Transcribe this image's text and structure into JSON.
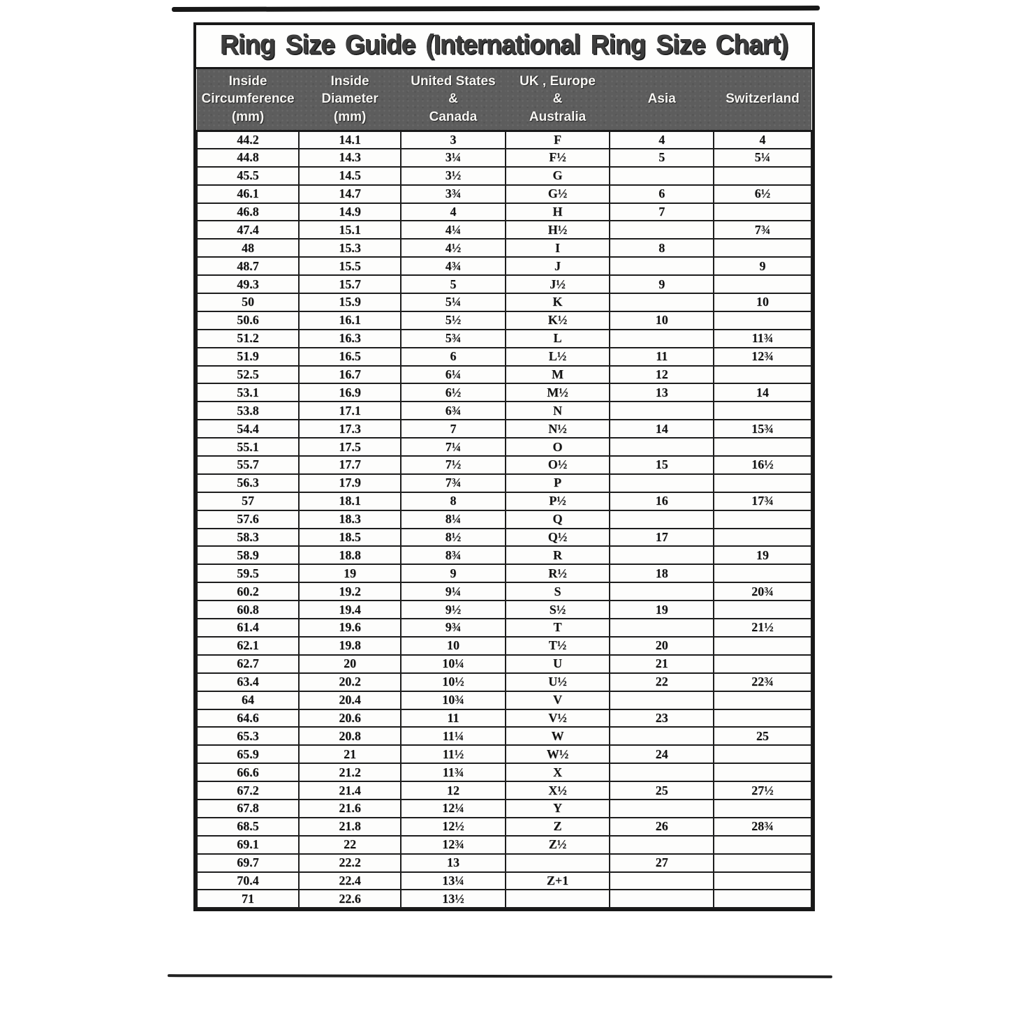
{
  "title": "Ring Size Guide (International Ring Size Chart)",
  "chart_data": {
    "type": "table",
    "title": "Ring Size Guide (International Ring Size Chart)",
    "columns": [
      "Inside Circumference (mm)",
      "Inside Diameter (mm)",
      "United States & Canada",
      "UK , Europe & Australia",
      "Asia",
      "Switzerland"
    ],
    "header_display": [
      "Inside\nCircumference\n(mm)",
      "Inside\nDiameter\n(mm)",
      "United States\n&\nCanada",
      "UK , Europe\n&\nAustralia",
      "Asia",
      "Switzerland"
    ],
    "rows": [
      [
        "44.2",
        "14.1",
        "3",
        "F",
        "4",
        "4"
      ],
      [
        "44.8",
        "14.3",
        "3¼",
        "F½",
        "5",
        "5¼"
      ],
      [
        "45.5",
        "14.5",
        "3½",
        "G",
        "",
        ""
      ],
      [
        "46.1",
        "14.7",
        "3¾",
        "G½",
        "6",
        "6½"
      ],
      [
        "46.8",
        "14.9",
        "4",
        "H",
        "7",
        ""
      ],
      [
        "47.4",
        "15.1",
        "4¼",
        "H½",
        "",
        "7¾"
      ],
      [
        "48",
        "15.3",
        "4½",
        "I",
        "8",
        ""
      ],
      [
        "48.7",
        "15.5",
        "4¾",
        "J",
        "",
        "9"
      ],
      [
        "49.3",
        "15.7",
        "5",
        "J½",
        "9",
        ""
      ],
      [
        "50",
        "15.9",
        "5¼",
        "K",
        "",
        "10"
      ],
      [
        "50.6",
        "16.1",
        "5½",
        "K½",
        "10",
        ""
      ],
      [
        "51.2",
        "16.3",
        "5¾",
        "L",
        "",
        "11¾"
      ],
      [
        "51.9",
        "16.5",
        "6",
        "L½",
        "11",
        "12¾"
      ],
      [
        "52.5",
        "16.7",
        "6¼",
        "M",
        "12",
        ""
      ],
      [
        "53.1",
        "16.9",
        "6½",
        "M½",
        "13",
        "14"
      ],
      [
        "53.8",
        "17.1",
        "6¾",
        "N",
        "",
        ""
      ],
      [
        "54.4",
        "17.3",
        "7",
        "N½",
        "14",
        "15¾"
      ],
      [
        "55.1",
        "17.5",
        "7¼",
        "O",
        "",
        ""
      ],
      [
        "55.7",
        "17.7",
        "7½",
        "O½",
        "15",
        "16½"
      ],
      [
        "56.3",
        "17.9",
        "7¾",
        "P",
        "",
        ""
      ],
      [
        "57",
        "18.1",
        "8",
        "P½",
        "16",
        "17¾"
      ],
      [
        "57.6",
        "18.3",
        "8¼",
        "Q",
        "",
        ""
      ],
      [
        "58.3",
        "18.5",
        "8½",
        "Q½",
        "17",
        ""
      ],
      [
        "58.9",
        "18.8",
        "8¾",
        "R",
        "",
        "19"
      ],
      [
        "59.5",
        "19",
        "9",
        "R½",
        "18",
        ""
      ],
      [
        "60.2",
        "19.2",
        "9¼",
        "S",
        "",
        "20¾"
      ],
      [
        "60.8",
        "19.4",
        "9½",
        "S½",
        "19",
        ""
      ],
      [
        "61.4",
        "19.6",
        "9¾",
        "T",
        "",
        "21½"
      ],
      [
        "62.1",
        "19.8",
        "10",
        "T½",
        "20",
        ""
      ],
      [
        "62.7",
        "20",
        "10¼",
        "U",
        "21",
        ""
      ],
      [
        "63.4",
        "20.2",
        "10½",
        "U½",
        "22",
        "22¾"
      ],
      [
        "64",
        "20.4",
        "10¾",
        "V",
        "",
        ""
      ],
      [
        "64.6",
        "20.6",
        "11",
        "V½",
        "23",
        ""
      ],
      [
        "65.3",
        "20.8",
        "11¼",
        "W",
        "",
        "25"
      ],
      [
        "65.9",
        "21",
        "11½",
        "W½",
        "24",
        ""
      ],
      [
        "66.6",
        "21.2",
        "11¾",
        "X",
        "",
        ""
      ],
      [
        "67.2",
        "21.4",
        "12",
        "X½",
        "25",
        "27½"
      ],
      [
        "67.8",
        "21.6",
        "12¼",
        "Y",
        "",
        ""
      ],
      [
        "68.5",
        "21.8",
        "12½",
        "Z",
        "26",
        "28¾"
      ],
      [
        "69.1",
        "22",
        "12¾",
        "Z½",
        "",
        ""
      ],
      [
        "69.7",
        "22.2",
        "13",
        "",
        "27",
        ""
      ],
      [
        "70.4",
        "22.4",
        "13¼",
        "Z+1",
        "",
        ""
      ],
      [
        "71",
        "22.6",
        "13½",
        "",
        "",
        ""
      ]
    ],
    "layout": {
      "grid": "on",
      "header_background": "#5d5d5d",
      "header_text_color": "#f6f5f2",
      "border_color": "#181818",
      "body_background": "#fdfdfc",
      "body_text_color": "#141414"
    }
  }
}
